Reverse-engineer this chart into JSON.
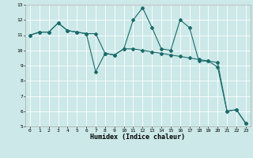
{
  "xlabel": "Humidex (Indice chaleur)",
  "background_color": "#cce8e8",
  "grid_color": "#ffffff",
  "line_color": "#1a6b6b",
  "xlim": [
    -0.5,
    23.5
  ],
  "ylim": [
    5,
    13
  ],
  "yticks": [
    5,
    6,
    7,
    8,
    9,
    10,
    11,
    12,
    13
  ],
  "xticks": [
    0,
    1,
    2,
    3,
    4,
    5,
    6,
    7,
    8,
    9,
    10,
    11,
    12,
    13,
    14,
    15,
    16,
    17,
    18,
    19,
    20,
    21,
    22,
    23
  ],
  "series1_x": [
    0,
    1,
    2,
    3,
    4,
    5,
    6,
    7,
    8,
    9,
    10,
    11,
    12,
    13,
    14,
    15,
    16,
    17,
    18,
    19,
    20,
    21,
    22,
    23
  ],
  "series1_y": [
    11.0,
    11.2,
    11.2,
    11.8,
    11.3,
    11.2,
    11.1,
    11.1,
    9.8,
    9.7,
    10.1,
    10.1,
    10.0,
    9.9,
    9.8,
    9.7,
    9.6,
    9.5,
    9.4,
    9.3,
    9.2,
    6.0,
    6.1,
    5.2
  ],
  "series2_x": [
    0,
    1,
    2,
    3,
    4,
    5,
    6,
    7,
    8,
    9,
    10,
    11,
    12,
    13,
    14,
    15,
    16,
    17,
    18,
    19,
    20,
    21,
    22,
    23
  ],
  "series2_y": [
    11.0,
    11.2,
    11.2,
    11.8,
    11.3,
    11.2,
    11.1,
    8.6,
    9.8,
    9.7,
    10.1,
    12.0,
    12.8,
    11.5,
    10.1,
    10.0,
    12.0,
    11.5,
    9.3,
    9.3,
    8.9,
    6.0,
    6.1,
    5.2
  ],
  "title_fontsize": 6,
  "xlabel_fontsize": 6,
  "tick_fontsize": 4.5,
  "linewidth": 0.8,
  "markersize": 2.0
}
